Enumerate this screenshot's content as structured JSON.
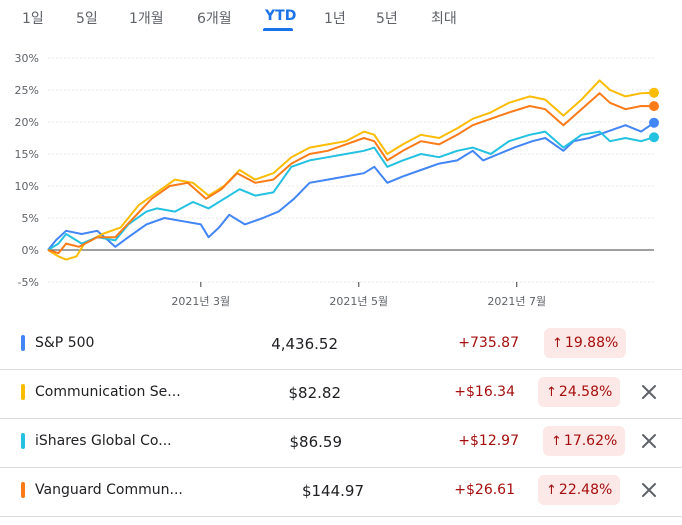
{
  "tabs": [
    {
      "label": "1일",
      "active": false
    },
    {
      "label": "5일",
      "active": false
    },
    {
      "label": "1개월",
      "active": false
    },
    {
      "label": "6개월",
      "active": false
    },
    {
      "label": "YTD",
      "active": true
    },
    {
      "label": "1년",
      "active": false
    },
    {
      "label": "5년",
      "active": false
    },
    {
      "label": "최대",
      "active": false
    }
  ],
  "chart_data": {
    "type": "line",
    "ylim": [
      -5,
      30
    ],
    "yticks": [
      "30%",
      "25%",
      "20%",
      "15%",
      "10%",
      "5%",
      "0%",
      "-5%"
    ],
    "ytick_values": [
      30,
      25,
      20,
      15,
      10,
      5,
      0,
      -5
    ],
    "xrange": [
      "2021-01-01",
      "2021-08-23"
    ],
    "xticks": [
      {
        "label": "2021년 3월",
        "date": "2021-03-01"
      },
      {
        "label": "2021년 5월",
        "date": "2021-05-01"
      },
      {
        "label": "2021년 7월",
        "date": "2021-07-01"
      }
    ],
    "grid": "horizontal",
    "series": [
      {
        "name": "S&P 500",
        "color": "#4285f4",
        "final": 19.88,
        "points": [
          [
            "2021-01-01",
            0
          ],
          [
            "2021-01-04",
            1.5
          ],
          [
            "2021-01-08",
            3.0
          ],
          [
            "2021-01-14",
            2.5
          ],
          [
            "2021-01-20",
            3.0
          ],
          [
            "2021-01-27",
            0.5
          ],
          [
            "2021-02-01",
            2.0
          ],
          [
            "2021-02-08",
            4.0
          ],
          [
            "2021-02-15",
            5.0
          ],
          [
            "2021-02-22",
            4.5
          ],
          [
            "2021-03-01",
            4.0
          ],
          [
            "2021-03-04",
            2.0
          ],
          [
            "2021-03-08",
            3.5
          ],
          [
            "2021-03-12",
            5.5
          ],
          [
            "2021-03-18",
            4.0
          ],
          [
            "2021-03-25",
            5.0
          ],
          [
            "2021-03-31",
            6.0
          ],
          [
            "2021-04-06",
            8.0
          ],
          [
            "2021-04-12",
            10.5
          ],
          [
            "2021-04-19",
            11.0
          ],
          [
            "2021-04-26",
            11.5
          ],
          [
            "2021-05-03",
            12.0
          ],
          [
            "2021-05-07",
            13.0
          ],
          [
            "2021-05-12",
            10.5
          ],
          [
            "2021-05-18",
            11.5
          ],
          [
            "2021-05-25",
            12.5
          ],
          [
            "2021-06-01",
            13.5
          ],
          [
            "2021-06-08",
            14.0
          ],
          [
            "2021-06-14",
            15.5
          ],
          [
            "2021-06-18",
            14.0
          ],
          [
            "2021-06-24",
            15.0
          ],
          [
            "2021-06-30",
            16.0
          ],
          [
            "2021-07-07",
            17.0
          ],
          [
            "2021-07-12",
            17.5
          ],
          [
            "2021-07-19",
            15.5
          ],
          [
            "2021-07-23",
            17.0
          ],
          [
            "2021-07-29",
            17.5
          ],
          [
            "2021-08-05",
            18.5
          ],
          [
            "2021-08-12",
            19.5
          ],
          [
            "2021-08-18",
            18.5
          ],
          [
            "2021-08-23",
            19.88
          ]
        ]
      },
      {
        "name": "Communication Se...",
        "color": "#fbbc04",
        "final": 24.58,
        "points": [
          [
            "2021-01-01",
            0
          ],
          [
            "2021-01-05",
            -1.0
          ],
          [
            "2021-01-08",
            -1.5
          ],
          [
            "2021-01-12",
            -1.0
          ],
          [
            "2021-01-15",
            1.0
          ],
          [
            "2021-01-22",
            2.5
          ],
          [
            "2021-01-29",
            3.5
          ],
          [
            "2021-02-05",
            7.0
          ],
          [
            "2021-02-12",
            9.0
          ],
          [
            "2021-02-19",
            11.0
          ],
          [
            "2021-02-26",
            10.5
          ],
          [
            "2021-03-04",
            8.5
          ],
          [
            "2021-03-10",
            10.0
          ],
          [
            "2021-03-16",
            12.5
          ],
          [
            "2021-03-22",
            11.0
          ],
          [
            "2021-03-29",
            12.0
          ],
          [
            "2021-04-05",
            14.5
          ],
          [
            "2021-04-12",
            16.0
          ],
          [
            "2021-04-19",
            16.5
          ],
          [
            "2021-04-26",
            17.0
          ],
          [
            "2021-05-03",
            18.5
          ],
          [
            "2021-05-07",
            18.0
          ],
          [
            "2021-05-12",
            15.0
          ],
          [
            "2021-05-18",
            16.5
          ],
          [
            "2021-05-25",
            18.0
          ],
          [
            "2021-06-01",
            17.5
          ],
          [
            "2021-06-08",
            19.0
          ],
          [
            "2021-06-14",
            20.5
          ],
          [
            "2021-06-21",
            21.5
          ],
          [
            "2021-06-28",
            23.0
          ],
          [
            "2021-07-06",
            24.0
          ],
          [
            "2021-07-12",
            23.5
          ],
          [
            "2021-07-19",
            21.0
          ],
          [
            "2021-07-26",
            23.5
          ],
          [
            "2021-08-02",
            26.5
          ],
          [
            "2021-08-06",
            25.0
          ],
          [
            "2021-08-12",
            24.0
          ],
          [
            "2021-08-18",
            24.5
          ],
          [
            "2021-08-23",
            24.58
          ]
        ]
      },
      {
        "name": "iShares Global Co...",
        "color": "#24c1e0",
        "final": 17.62,
        "points": [
          [
            "2021-01-01",
            0
          ],
          [
            "2021-01-05",
            1.0
          ],
          [
            "2021-01-08",
            2.5
          ],
          [
            "2021-01-14",
            1.0
          ],
          [
            "2021-01-20",
            2.0
          ],
          [
            "2021-01-27",
            1.5
          ],
          [
            "2021-02-01",
            4.0
          ],
          [
            "2021-02-08",
            6.0
          ],
          [
            "2021-02-12",
            6.5
          ],
          [
            "2021-02-19",
            6.0
          ],
          [
            "2021-02-26",
            7.5
          ],
          [
            "2021-03-04",
            6.5
          ],
          [
            "2021-03-10",
            8.0
          ],
          [
            "2021-03-16",
            9.5
          ],
          [
            "2021-03-22",
            8.5
          ],
          [
            "2021-03-29",
            9.0
          ],
          [
            "2021-04-05",
            13.0
          ],
          [
            "2021-04-12",
            14.0
          ],
          [
            "2021-04-19",
            14.5
          ],
          [
            "2021-04-26",
            15.0
          ],
          [
            "2021-05-03",
            15.5
          ],
          [
            "2021-05-07",
            16.0
          ],
          [
            "2021-05-12",
            13.0
          ],
          [
            "2021-05-18",
            14.0
          ],
          [
            "2021-05-25",
            15.0
          ],
          [
            "2021-06-01",
            14.5
          ],
          [
            "2021-06-08",
            15.5
          ],
          [
            "2021-06-14",
            16.0
          ],
          [
            "2021-06-21",
            15.0
          ],
          [
            "2021-06-28",
            17.0
          ],
          [
            "2021-07-06",
            18.0
          ],
          [
            "2021-07-12",
            18.5
          ],
          [
            "2021-07-19",
            16.0
          ],
          [
            "2021-07-26",
            18.0
          ],
          [
            "2021-08-02",
            18.5
          ],
          [
            "2021-08-06",
            17.0
          ],
          [
            "2021-08-12",
            17.5
          ],
          [
            "2021-08-18",
            17.0
          ],
          [
            "2021-08-23",
            17.62
          ]
        ]
      },
      {
        "name": "Vanguard Commun...",
        "color": "#fa7b17",
        "final": 22.48,
        "points": [
          [
            "2021-01-01",
            0
          ],
          [
            "2021-01-05",
            -0.5
          ],
          [
            "2021-01-08",
            1.0
          ],
          [
            "2021-01-13",
            0.5
          ],
          [
            "2021-01-20",
            2.0
          ],
          [
            "2021-01-27",
            2.0
          ],
          [
            "2021-02-03",
            5.0
          ],
          [
            "2021-02-10",
            8.0
          ],
          [
            "2021-02-17",
            10.0
          ],
          [
            "2021-02-24",
            10.5
          ],
          [
            "2021-03-03",
            8.0
          ],
          [
            "2021-03-09",
            9.5
          ],
          [
            "2021-03-15",
            12.0
          ],
          [
            "2021-03-22",
            10.5
          ],
          [
            "2021-03-29",
            11.0
          ],
          [
            "2021-04-05",
            13.5
          ],
          [
            "2021-04-12",
            15.0
          ],
          [
            "2021-04-19",
            15.5
          ],
          [
            "2021-04-26",
            16.5
          ],
          [
            "2021-05-03",
            17.5
          ],
          [
            "2021-05-07",
            17.0
          ],
          [
            "2021-05-12",
            14.0
          ],
          [
            "2021-05-18",
            15.5
          ],
          [
            "2021-05-25",
            17.0
          ],
          [
            "2021-06-01",
            16.5
          ],
          [
            "2021-06-08",
            18.0
          ],
          [
            "2021-06-14",
            19.5
          ],
          [
            "2021-06-21",
            20.5
          ],
          [
            "2021-06-28",
            21.5
          ],
          [
            "2021-07-06",
            22.5
          ],
          [
            "2021-07-12",
            22.0
          ],
          [
            "2021-07-19",
            19.5
          ],
          [
            "2021-07-26",
            22.0
          ],
          [
            "2021-08-02",
            24.5
          ],
          [
            "2021-08-06",
            23.0
          ],
          [
            "2021-08-12",
            22.0
          ],
          [
            "2021-08-18",
            22.5
          ],
          [
            "2021-08-23",
            22.48
          ]
        ]
      }
    ]
  },
  "rows": [
    {
      "name": "S&P 500",
      "color": "#4285f4",
      "price": "4,436.52",
      "change": "+735.87",
      "pct": "19.88%",
      "removable": false
    },
    {
      "name": "Communication Se...",
      "color": "#fbbc04",
      "price": "$82.82",
      "change": "+$16.34",
      "pct": "24.58%",
      "removable": true
    },
    {
      "name": "iShares Global Co...",
      "color": "#24c1e0",
      "price": "$86.59",
      "change": "+$12.97",
      "pct": "17.62%",
      "removable": true
    },
    {
      "name": "Vanguard Commun...",
      "color": "#fa7b17",
      "price": "$144.97",
      "change": "+$26.61",
      "pct": "22.48%",
      "removable": true
    }
  ],
  "icons": {
    "arrow": "arrow-up-icon",
    "close": "close-icon"
  }
}
